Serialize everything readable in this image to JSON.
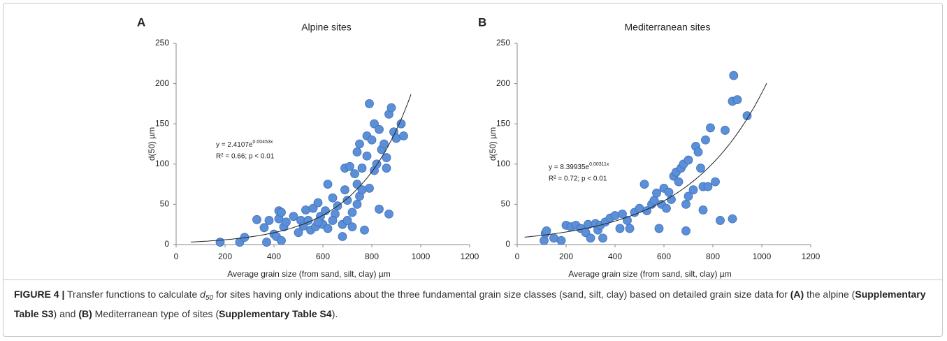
{
  "chart_data": [
    {
      "type": "scatter",
      "panel": "A",
      "title": "Alpine sites",
      "x_label": "Average grain size (from sand, silt, clay) µm",
      "y_label": "d(50) µm",
      "xlim": [
        0,
        1200
      ],
      "xticks": [
        0,
        200,
        400,
        600,
        800,
        1000,
        1200
      ],
      "ylim": [
        0,
        250
      ],
      "yticks": [
        0,
        50,
        100,
        150,
        200,
        250
      ],
      "color": "#5b8fd8",
      "x": [
        180,
        260,
        280,
        330,
        360,
        370,
        380,
        400,
        410,
        420,
        420,
        430,
        430,
        440,
        450,
        480,
        500,
        510,
        520,
        530,
        540,
        550,
        560,
        570,
        580,
        590,
        600,
        610,
        620,
        620,
        640,
        650,
        660,
        680,
        680,
        690,
        690,
        700,
        710,
        720,
        720,
        730,
        740,
        740,
        750,
        750,
        760,
        770,
        780,
        780,
        790,
        790,
        800,
        810,
        810,
        820,
        830,
        830,
        840,
        850,
        860,
        860,
        870,
        870,
        880,
        890,
        900,
        920,
        930,
        700,
        760,
        640,
        580,
        740
      ],
      "values": [
        3,
        3,
        9,
        31,
        21,
        3,
        30,
        13,
        10,
        32,
        42,
        5,
        40,
        22,
        28,
        35,
        15,
        30,
        23,
        43,
        30,
        18,
        45,
        22,
        52,
        35,
        25,
        42,
        75,
        20,
        58,
        38,
        48,
        10,
        25,
        68,
        95,
        55,
        97,
        40,
        22,
        88,
        115,
        75,
        125,
        60,
        95,
        18,
        110,
        135,
        70,
        175,
        130,
        150,
        92,
        100,
        143,
        44,
        118,
        125,
        95,
        108,
        162,
        38,
        170,
        140,
        132,
        150,
        135,
        30,
        68,
        30,
        28,
        50
      ],
      "fit": {
        "a": 2.4107,
        "b": 0.00453,
        "x_range": [
          60,
          960
        ]
      },
      "equation": "y = 2.4107e",
      "equation_exponent": "0.00453x",
      "r2_text": "R² = 0.66; p < 0.01"
    },
    {
      "type": "scatter",
      "panel": "B",
      "title": "Mediterranean sites",
      "x_label": "Average grain size (from sand, silt, clay) µm",
      "y_label": "d(50) µm",
      "xlim": [
        0,
        1200
      ],
      "xticks": [
        0,
        200,
        400,
        600,
        800,
        1000,
        1200
      ],
      "ylim": [
        0,
        250
      ],
      "yticks": [
        0,
        50,
        100,
        150,
        200,
        250
      ],
      "color": "#5b8fd8",
      "x": [
        110,
        115,
        120,
        150,
        180,
        200,
        220,
        240,
        260,
        280,
        290,
        300,
        320,
        330,
        340,
        350,
        360,
        380,
        400,
        420,
        430,
        450,
        460,
        480,
        500,
        520,
        530,
        550,
        560,
        570,
        580,
        590,
        600,
        610,
        620,
        630,
        640,
        650,
        660,
        670,
        680,
        690,
        700,
        700,
        720,
        730,
        740,
        750,
        760,
        760,
        770,
        780,
        790,
        810,
        830,
        850,
        880,
        880,
        885,
        900,
        940,
        690
      ],
      "values": [
        5,
        14,
        17,
        8,
        5,
        24,
        22,
        24,
        20,
        15,
        25,
        8,
        26,
        18,
        24,
        8,
        28,
        33,
        36,
        20,
        38,
        30,
        20,
        40,
        45,
        75,
        42,
        50,
        55,
        64,
        20,
        50,
        70,
        45,
        65,
        56,
        85,
        90,
        78,
        95,
        100,
        17,
        60,
        105,
        68,
        122,
        115,
        95,
        43,
        72,
        130,
        72,
        145,
        78,
        30,
        142,
        32,
        178,
        210,
        180,
        160,
        50
      ],
      "fit": {
        "a": 8.39935,
        "b": 0.00311,
        "x_range": [
          30,
          1020
        ]
      },
      "equation": "y = 8.39935e",
      "equation_exponent": "0.00311x",
      "r2_text": "R² = 0.72; p < 0.01"
    }
  ],
  "caption": {
    "segments": [
      {
        "text": "FIGURE 4 |",
        "style": "bold"
      },
      {
        "text": " Transfer functions to calculate ",
        "style": "normal"
      },
      {
        "text": "d",
        "style": "italic"
      },
      {
        "text": "50",
        "style": "sub"
      },
      {
        "text": " for sites having only indications about the three fundamental grain size classes (sand, silt, clay) based on detailed grain size data for ",
        "style": "normal"
      },
      {
        "text": "(A)",
        "style": "bold"
      },
      {
        "text": " the alpine (",
        "style": "normal"
      },
      {
        "text": "Supplementary Table S3",
        "style": "bold"
      },
      {
        "text": ") and ",
        "style": "normal"
      },
      {
        "text": "(B)",
        "style": "bold"
      },
      {
        "text": " Mediterranean type of sites (",
        "style": "normal"
      },
      {
        "text": "Supplementary Table S4",
        "style": "bold"
      },
      {
        "text": ").",
        "style": "normal"
      }
    ]
  }
}
